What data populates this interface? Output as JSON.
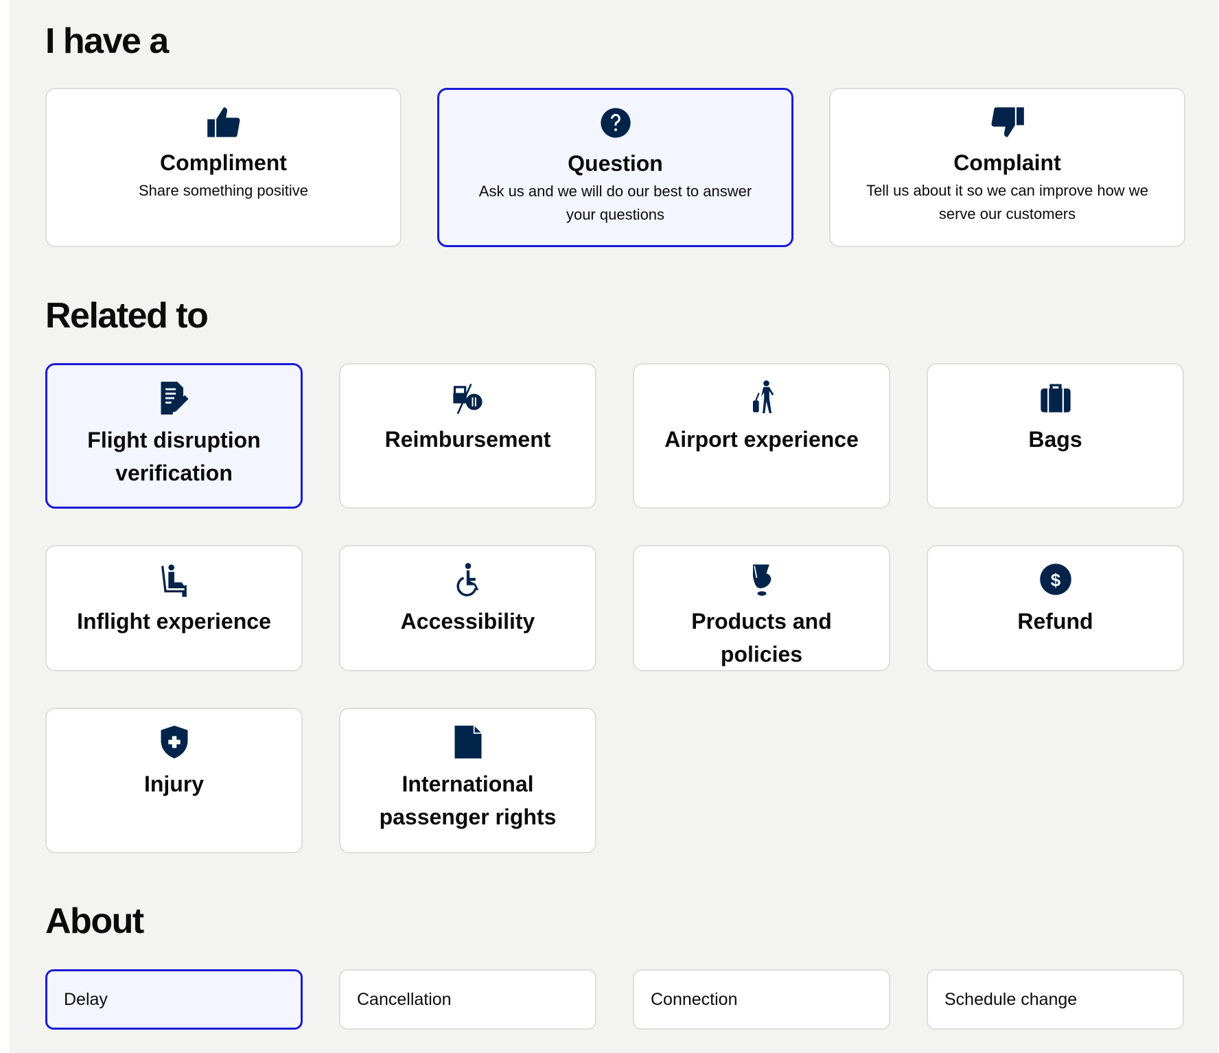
{
  "sections": {
    "type_heading": "I have a",
    "related_heading": "Related to",
    "about_heading": "About"
  },
  "feedback_types": [
    {
      "title": "Compliment",
      "description": "Share something positive",
      "icon": "thumbs-up-icon",
      "selected": false
    },
    {
      "title": "Question",
      "description": "Ask us and we will do our best to answer your questions",
      "icon": "question-circle-icon",
      "selected": true
    },
    {
      "title": "Complaint",
      "description": "Tell us about it so we can improve how we serve our customers",
      "icon": "thumbs-down-icon",
      "selected": false
    }
  ],
  "related_topics": [
    {
      "title": "Flight disruption verification",
      "icon": "document-edit-icon",
      "selected": true
    },
    {
      "title": "Reimbursement",
      "icon": "hotel-meal-icon",
      "selected": false
    },
    {
      "title": "Airport experience",
      "icon": "traveler-luggage-icon",
      "selected": false
    },
    {
      "title": "Bags",
      "icon": "suitcase-icon",
      "selected": false
    },
    {
      "title": "Inflight experience",
      "icon": "seated-passenger-icon",
      "selected": false
    },
    {
      "title": "Accessibility",
      "icon": "wheelchair-icon",
      "selected": false
    },
    {
      "title": "Products and policies",
      "icon": "seat-chair-icon",
      "selected": false
    },
    {
      "title": "Refund",
      "icon": "dollar-circle-icon",
      "selected": false
    },
    {
      "title": "Injury",
      "icon": "medical-shield-icon",
      "selected": false
    },
    {
      "title": "International passenger rights",
      "icon": "document-icon",
      "selected": false
    }
  ],
  "about_options": [
    {
      "label": "Delay",
      "selected": true
    },
    {
      "label": "Cancellation",
      "selected": false
    },
    {
      "label": "Connection",
      "selected": false
    },
    {
      "label": "Schedule change",
      "selected": false
    }
  ],
  "colors": {
    "selected_border": "#1a1ad6",
    "selected_bg": "#f3f6fe",
    "icon": "#03244a",
    "page_bg": "#f3f3f2"
  }
}
